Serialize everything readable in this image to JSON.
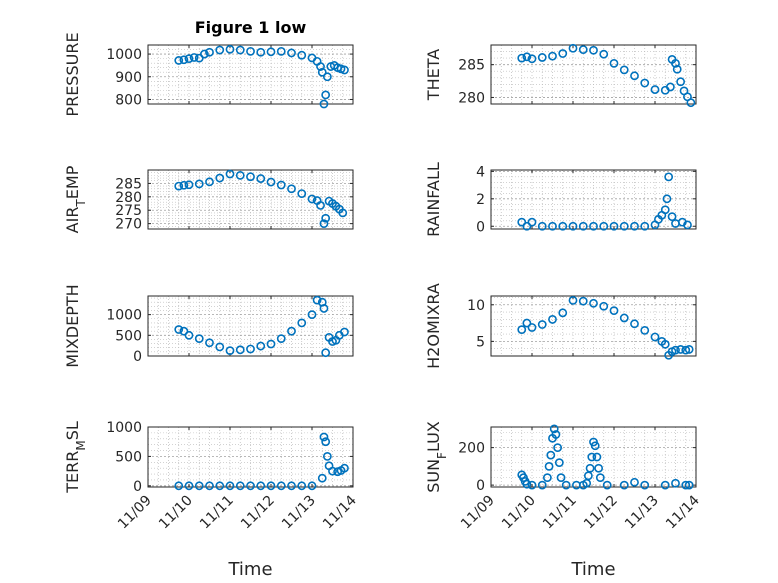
{
  "figure": {
    "title": "Figure 1 low",
    "marker_color": "#0072BD",
    "axes_color": "#262626",
    "grid_color": "#b8b8b8"
  },
  "chart_data": [
    {
      "type": "scatter",
      "title": "Figure 1 low",
      "ylabel": "PRESSURE",
      "ylabel_sub": "",
      "ylabel_parts": [],
      "xlabel": "",
      "xlim": [
        "2018-11-09",
        "2018-11-14"
      ],
      "ylim": [
        780,
        1040
      ],
      "yticks": [
        800,
        900,
        1000
      ],
      "yticklabels": [
        "800",
        "900",
        "1000"
      ],
      "xticklabels": [],
      "grid": true,
      "points": [
        [
          "2018-11-09 18:00",
          972
        ],
        [
          "2018-11-09 21:00",
          975
        ],
        [
          "2018-11-10 00:00",
          980
        ],
        [
          "2018-11-10 03:00",
          985
        ],
        [
          "2018-11-10 06:00",
          982
        ],
        [
          "2018-11-10 09:00",
          1000
        ],
        [
          "2018-11-10 12:00",
          1008
        ],
        [
          "2018-11-10 18:00",
          1018
        ],
        [
          "2018-11-11 00:00",
          1021
        ],
        [
          "2018-11-11 06:00",
          1018
        ],
        [
          "2018-11-11 12:00",
          1012
        ],
        [
          "2018-11-11 18:00",
          1008
        ],
        [
          "2018-11-12 00:00",
          1010
        ],
        [
          "2018-11-12 06:00",
          1012
        ],
        [
          "2018-11-12 12:00",
          1005
        ],
        [
          "2018-11-12 18:00",
          995
        ],
        [
          "2018-11-13 00:00",
          983
        ],
        [
          "2018-11-13 03:00",
          968
        ],
        [
          "2018-11-13 05:00",
          945
        ],
        [
          "2018-11-13 06:00",
          920
        ],
        [
          "2018-11-13 07:00",
          780
        ],
        [
          "2018-11-13 08:00",
          820
        ],
        [
          "2018-11-13 09:00",
          900
        ],
        [
          "2018-11-13 11:00",
          945
        ],
        [
          "2018-11-13 13:00",
          950
        ],
        [
          "2018-11-13 15:00",
          940
        ],
        [
          "2018-11-13 17:00",
          935
        ],
        [
          "2018-11-13 19:00",
          930
        ]
      ]
    },
    {
      "type": "scatter",
      "title": "",
      "ylabel": "THETA",
      "ylabel_sub": "",
      "ylabel_parts": [],
      "xlabel": "",
      "xlim": [
        "2018-11-09",
        "2018-11-14"
      ],
      "ylim": [
        279,
        288
      ],
      "yticks": [
        280,
        285
      ],
      "yticklabels": [
        "280",
        "285"
      ],
      "xticklabels": [],
      "grid": true,
      "points": [
        [
          "2018-11-09 18:00",
          286
        ],
        [
          "2018-11-09 21:00",
          286.2
        ],
        [
          "2018-11-10 00:00",
          285.9
        ],
        [
          "2018-11-10 06:00",
          286.1
        ],
        [
          "2018-11-10 12:00",
          286.3
        ],
        [
          "2018-11-10 18:00",
          286.7
        ],
        [
          "2018-11-11 00:00",
          287.5
        ],
        [
          "2018-11-11 06:00",
          287.3
        ],
        [
          "2018-11-11 12:00",
          287.2
        ],
        [
          "2018-11-11 18:00",
          286.6
        ],
        [
          "2018-11-12 00:00",
          285.2
        ],
        [
          "2018-11-12 06:00",
          284.2
        ],
        [
          "2018-11-12 12:00",
          283.3
        ],
        [
          "2018-11-12 18:00",
          282.2
        ],
        [
          "2018-11-13 00:00",
          281.2
        ],
        [
          "2018-11-13 06:00",
          281.1
        ],
        [
          "2018-11-13 09:00",
          281.6
        ],
        [
          "2018-11-13 10:00",
          285.8
        ],
        [
          "2018-11-13 12:00",
          285.2
        ],
        [
          "2018-11-13 13:00",
          284.3
        ],
        [
          "2018-11-13 15:00",
          282.4
        ],
        [
          "2018-11-13 17:00",
          281
        ],
        [
          "2018-11-13 19:00",
          280.1
        ],
        [
          "2018-11-13 21:00",
          279.2
        ]
      ]
    },
    {
      "type": "scatter",
      "title": "",
      "ylabel": "",
      "ylabel_sub": "",
      "ylabel_parts": [
        {
          "text": "AIR",
          "sub": false
        },
        {
          "text": "T",
          "sub": true
        },
        {
          "text": "EMP",
          "sub": false
        }
      ],
      "xlabel": "",
      "xlim": [
        "2018-11-09",
        "2018-11-14"
      ],
      "ylim": [
        268,
        290
      ],
      "yticks": [
        270,
        275,
        280,
        285
      ],
      "yticklabels": [
        "270",
        "275",
        "280",
        "285"
      ],
      "xticklabels": [],
      "grid": true,
      "points": [
        [
          "2018-11-09 18:00",
          284
        ],
        [
          "2018-11-09 21:00",
          284.3
        ],
        [
          "2018-11-10 00:00",
          284.5
        ],
        [
          "2018-11-10 06:00",
          284.8
        ],
        [
          "2018-11-10 12:00",
          285.6
        ],
        [
          "2018-11-10 18:00",
          287
        ],
        [
          "2018-11-11 00:00",
          288.5
        ],
        [
          "2018-11-11 06:00",
          288
        ],
        [
          "2018-11-11 12:00",
          287.5
        ],
        [
          "2018-11-11 18:00",
          286.8
        ],
        [
          "2018-11-12 00:00",
          285.5
        ],
        [
          "2018-11-12 06:00",
          284.4
        ],
        [
          "2018-11-12 12:00",
          283
        ],
        [
          "2018-11-12 18:00",
          281.2
        ],
        [
          "2018-11-13 00:00",
          279.2
        ],
        [
          "2018-11-13 03:00",
          278.6
        ],
        [
          "2018-11-13 05:00",
          276.8
        ],
        [
          "2018-11-13 07:00",
          270
        ],
        [
          "2018-11-13 08:00",
          272
        ],
        [
          "2018-11-13 10:00",
          278.4
        ],
        [
          "2018-11-13 12:00",
          277.5
        ],
        [
          "2018-11-13 14:00",
          276.5
        ],
        [
          "2018-11-13 16:00",
          275.4
        ],
        [
          "2018-11-13 18:00",
          274
        ]
      ]
    },
    {
      "type": "scatter",
      "title": "",
      "ylabel": "RAINFALL",
      "ylabel_sub": "",
      "ylabel_parts": [],
      "xlabel": "",
      "xlim": [
        "2018-11-09",
        "2018-11-14"
      ],
      "ylim": [
        -0.2,
        4.1
      ],
      "yticks": [
        0,
        2,
        4
      ],
      "yticklabels": [
        "0",
        "2",
        "4"
      ],
      "xticklabels": [],
      "grid": true,
      "points": [
        [
          "2018-11-09 18:00",
          0.3
        ],
        [
          "2018-11-09 21:00",
          0
        ],
        [
          "2018-11-10 00:00",
          0.3
        ],
        [
          "2018-11-10 06:00",
          0
        ],
        [
          "2018-11-10 12:00",
          0
        ],
        [
          "2018-11-10 18:00",
          0
        ],
        [
          "2018-11-11 00:00",
          0
        ],
        [
          "2018-11-11 06:00",
          0
        ],
        [
          "2018-11-11 12:00",
          0
        ],
        [
          "2018-11-11 18:00",
          0
        ],
        [
          "2018-11-12 00:00",
          0
        ],
        [
          "2018-11-12 06:00",
          0
        ],
        [
          "2018-11-12 12:00",
          0
        ],
        [
          "2018-11-12 18:00",
          0
        ],
        [
          "2018-11-13 00:00",
          0.1
        ],
        [
          "2018-11-13 02:00",
          0.5
        ],
        [
          "2018-11-13 04:00",
          0.8
        ],
        [
          "2018-11-13 06:00",
          1.2
        ],
        [
          "2018-11-13 07:00",
          2
        ],
        [
          "2018-11-13 08:00",
          3.6
        ],
        [
          "2018-11-13 10:00",
          0.7
        ],
        [
          "2018-11-13 12:00",
          0.2
        ],
        [
          "2018-11-13 16:00",
          0.3
        ],
        [
          "2018-11-13 19:00",
          0.1
        ]
      ]
    },
    {
      "type": "scatter",
      "title": "",
      "ylabel": "MIXDEPTH",
      "ylabel_sub": "",
      "ylabel_parts": [],
      "xlabel": "",
      "xlim": [
        "2018-11-09",
        "2018-11-14"
      ],
      "ylim": [
        0,
        1450
      ],
      "yticks": [
        0,
        500,
        1000
      ],
      "yticklabels": [
        "0",
        "500",
        "1000"
      ],
      "xticklabels": [],
      "grid": true,
      "points": [
        [
          "2018-11-09 18:00",
          640
        ],
        [
          "2018-11-09 21:00",
          600
        ],
        [
          "2018-11-10 00:00",
          500
        ],
        [
          "2018-11-10 06:00",
          420
        ],
        [
          "2018-11-10 12:00",
          320
        ],
        [
          "2018-11-10 18:00",
          220
        ],
        [
          "2018-11-11 00:00",
          130
        ],
        [
          "2018-11-11 06:00",
          150
        ],
        [
          "2018-11-11 12:00",
          170
        ],
        [
          "2018-11-11 18:00",
          240
        ],
        [
          "2018-11-12 00:00",
          290
        ],
        [
          "2018-11-12 06:00",
          420
        ],
        [
          "2018-11-12 12:00",
          600
        ],
        [
          "2018-11-12 18:00",
          800
        ],
        [
          "2018-11-13 00:00",
          1000
        ],
        [
          "2018-11-13 03:00",
          1350
        ],
        [
          "2018-11-13 06:00",
          1300
        ],
        [
          "2018-11-13 07:00",
          1150
        ],
        [
          "2018-11-13 08:00",
          80
        ],
        [
          "2018-11-13 10:00",
          450
        ],
        [
          "2018-11-13 12:00",
          350
        ],
        [
          "2018-11-13 14:00",
          380
        ],
        [
          "2018-11-13 16:00",
          500
        ],
        [
          "2018-11-13 19:00",
          580
        ]
      ]
    },
    {
      "type": "scatter",
      "title": "",
      "ylabel": "H2OMIXRA",
      "ylabel_sub": "",
      "ylabel_parts": [],
      "xlabel": "",
      "xlim": [
        "2018-11-09",
        "2018-11-14"
      ],
      "ylim": [
        3,
        11.2
      ],
      "yticks": [
        5,
        10
      ],
      "yticklabels": [
        "5",
        "10"
      ],
      "xticklabels": [],
      "grid": true,
      "points": [
        [
          "2018-11-09 18:00",
          6.6
        ],
        [
          "2018-11-09 21:00",
          7.5
        ],
        [
          "2018-11-10 00:00",
          6.9
        ],
        [
          "2018-11-10 06:00",
          7.3
        ],
        [
          "2018-11-10 12:00",
          8
        ],
        [
          "2018-11-10 18:00",
          8.9
        ],
        [
          "2018-11-11 00:00",
          10.6
        ],
        [
          "2018-11-11 06:00",
          10.5
        ],
        [
          "2018-11-11 12:00",
          10.2
        ],
        [
          "2018-11-11 18:00",
          9.8
        ],
        [
          "2018-11-12 00:00",
          9.2
        ],
        [
          "2018-11-12 06:00",
          8.2
        ],
        [
          "2018-11-12 12:00",
          7.4
        ],
        [
          "2018-11-12 18:00",
          6.5
        ],
        [
          "2018-11-13 00:00",
          5.6
        ],
        [
          "2018-11-13 04:00",
          5
        ],
        [
          "2018-11-13 06:00",
          4.6
        ],
        [
          "2018-11-13 08:00",
          3.1
        ],
        [
          "2018-11-13 10:00",
          3.6
        ],
        [
          "2018-11-13 12:00",
          3.8
        ],
        [
          "2018-11-13 15:00",
          3.9
        ],
        [
          "2018-11-13 18:00",
          3.8
        ],
        [
          "2018-11-13 20:00",
          3.9
        ]
      ]
    },
    {
      "type": "scatter",
      "title": "",
      "ylabel": "",
      "ylabel_sub": "",
      "ylabel_parts": [
        {
          "text": "TERR",
          "sub": false
        },
        {
          "text": "M",
          "sub": true
        },
        {
          "text": "SL",
          "sub": false
        }
      ],
      "xlabel": "Time",
      "xlim": [
        "2018-11-09",
        "2018-11-14"
      ],
      "ylim": [
        -20,
        1000
      ],
      "yticks": [
        0,
        500,
        1000
      ],
      "yticklabels": [
        "0",
        "500",
        "1000"
      ],
      "xticklabels": [
        "11/09",
        "11/10",
        "11/11",
        "11/12",
        "11/13",
        "11/14"
      ],
      "grid": true,
      "points": [
        [
          "2018-11-09 18:00",
          0
        ],
        [
          "2018-11-10 00:00",
          0
        ],
        [
          "2018-11-10 06:00",
          0
        ],
        [
          "2018-11-10 12:00",
          0
        ],
        [
          "2018-11-10 18:00",
          0
        ],
        [
          "2018-11-11 00:00",
          0
        ],
        [
          "2018-11-11 06:00",
          0
        ],
        [
          "2018-11-11 12:00",
          0
        ],
        [
          "2018-11-11 18:00",
          0
        ],
        [
          "2018-11-12 00:00",
          0
        ],
        [
          "2018-11-12 06:00",
          0
        ],
        [
          "2018-11-12 12:00",
          0
        ],
        [
          "2018-11-12 18:00",
          0
        ],
        [
          "2018-11-13 00:00",
          0
        ],
        [
          "2018-11-13 06:00",
          130
        ],
        [
          "2018-11-13 07:00",
          830
        ],
        [
          "2018-11-13 08:00",
          750
        ],
        [
          "2018-11-13 09:00",
          500
        ],
        [
          "2018-11-13 10:00",
          340
        ],
        [
          "2018-11-13 12:00",
          250
        ],
        [
          "2018-11-13 15:00",
          240
        ],
        [
          "2018-11-13 17:00",
          260
        ],
        [
          "2018-11-13 19:00",
          300
        ]
      ]
    },
    {
      "type": "scatter",
      "title": "",
      "ylabel": "",
      "ylabel_sub": "",
      "ylabel_parts": [
        {
          "text": "SUN",
          "sub": false
        },
        {
          "text": "F",
          "sub": true
        },
        {
          "text": "LUX",
          "sub": false
        }
      ],
      "xlabel": "Time",
      "xlim": [
        "2018-11-09",
        "2018-11-14"
      ],
      "ylim": [
        -10,
        310
      ],
      "yticks": [
        0,
        200
      ],
      "yticklabels": [
        "0",
        "200"
      ],
      "xticklabels": [
        "11/09",
        "11/10",
        "11/11",
        "11/12",
        "11/13",
        "11/14"
      ],
      "grid": true,
      "points": [
        [
          "2018-11-09 18:00",
          55
        ],
        [
          "2018-11-09 19:00",
          40
        ],
        [
          "2018-11-09 20:00",
          20
        ],
        [
          "2018-11-09 21:00",
          5
        ],
        [
          "2018-11-10 00:00",
          0
        ],
        [
          "2018-11-10 06:00",
          0
        ],
        [
          "2018-11-10 09:00",
          40
        ],
        [
          "2018-11-10 10:00",
          100
        ],
        [
          "2018-11-10 11:00",
          160
        ],
        [
          "2018-11-10 12:00",
          250
        ],
        [
          "2018-11-10 13:00",
          300
        ],
        [
          "2018-11-10 14:00",
          270
        ],
        [
          "2018-11-10 15:00",
          200
        ],
        [
          "2018-11-10 16:00",
          120
        ],
        [
          "2018-11-10 17:00",
          40
        ],
        [
          "2018-11-10 20:00",
          0
        ],
        [
          "2018-11-11 02:00",
          0
        ],
        [
          "2018-11-11 06:00",
          0
        ],
        [
          "2018-11-11 08:00",
          10
        ],
        [
          "2018-11-11 09:00",
          50
        ],
        [
          "2018-11-11 10:00",
          90
        ],
        [
          "2018-11-11 11:00",
          150
        ],
        [
          "2018-11-11 12:00",
          230
        ],
        [
          "2018-11-11 13:00",
          210
        ],
        [
          "2018-11-11 14:00",
          150
        ],
        [
          "2018-11-11 15:00",
          90
        ],
        [
          "2018-11-11 16:00",
          40
        ],
        [
          "2018-11-11 20:00",
          0
        ],
        [
          "2018-11-12 06:00",
          0
        ],
        [
          "2018-11-12 12:00",
          15
        ],
        [
          "2018-11-12 18:00",
          0
        ],
        [
          "2018-11-13 06:00",
          0
        ],
        [
          "2018-11-13 12:00",
          10
        ],
        [
          "2018-11-13 18:00",
          0
        ],
        [
          "2018-11-13 20:00",
          0
        ]
      ]
    }
  ]
}
